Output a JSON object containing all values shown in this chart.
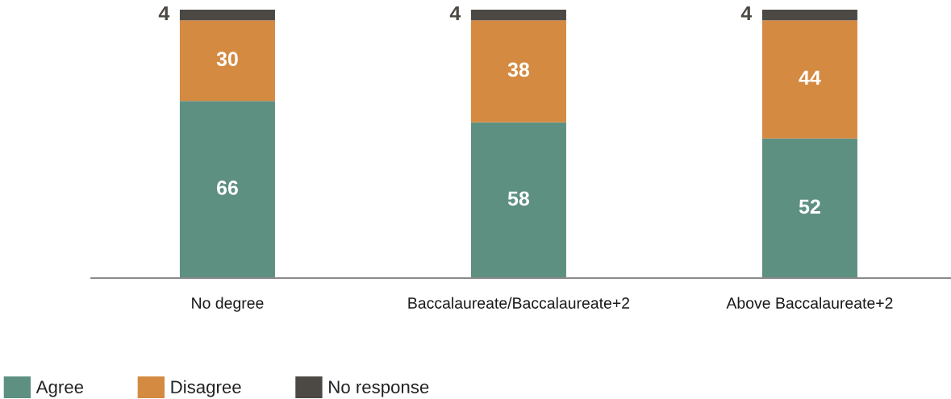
{
  "chart_data": {
    "type": "bar",
    "stacked": true,
    "categories": [
      "No degree",
      "Baccalaureate/Baccalaureate+2",
      "Above Baccalaureate+2"
    ],
    "series": [
      {
        "name": "Agree",
        "color": "#5e9081",
        "values": [
          66,
          58,
          52
        ]
      },
      {
        "name": "Disagree",
        "color": "#d58a42",
        "values": [
          30,
          38,
          44
        ]
      },
      {
        "name": "No response",
        "color": "#4c4944",
        "values": [
          4,
          4,
          4
        ]
      }
    ],
    "data_labels": true,
    "legend": "bottom left",
    "grid": false,
    "tick_labels": "x"
  }
}
